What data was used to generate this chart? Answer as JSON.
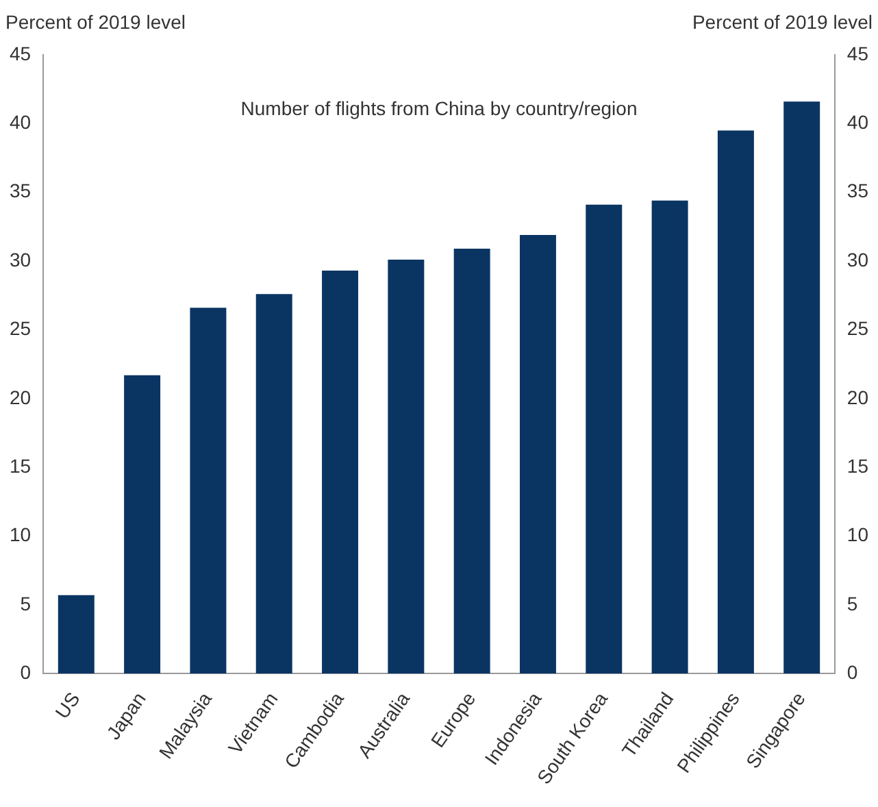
{
  "chart_data": {
    "type": "bar",
    "annotations": [
      "Number of flights from China by country/region"
    ],
    "ylabel": "Percent of 2019 level",
    "y2label": "Percent of 2019 level",
    "categories": [
      "US",
      "Japan",
      "Malaysia",
      "Vietnam",
      "Cambodia",
      "Australia",
      "Europe",
      "Indonesia",
      "South Korea",
      "Thailand",
      "Philippines",
      "Singapore"
    ],
    "values": [
      5.7,
      21.7,
      26.6,
      27.6,
      29.3,
      30.1,
      30.9,
      31.9,
      34.1,
      34.4,
      39.5,
      41.6
    ],
    "color": "#0a3563",
    "ylim": [
      0,
      45
    ],
    "yticks": [
      0,
      5,
      10,
      15,
      20,
      25,
      30,
      35,
      40,
      45
    ],
    "y2lim": [
      0,
      45
    ],
    "y2ticks": [
      0,
      5,
      10,
      15,
      20,
      25,
      30,
      35,
      40,
      45
    ],
    "grid": false,
    "legend": false
  }
}
